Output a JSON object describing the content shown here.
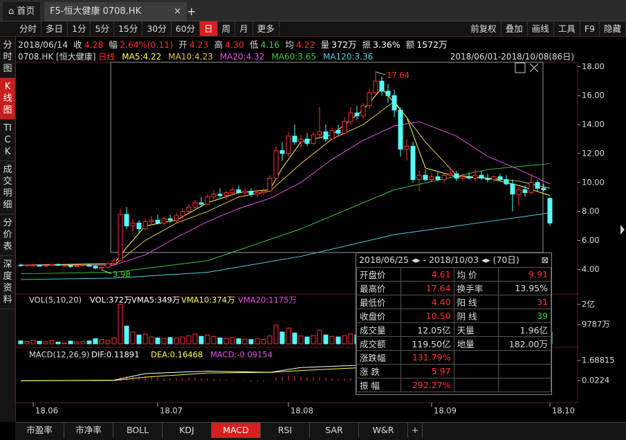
{
  "tabs": {
    "home": "首页",
    "stock": "F5-恒大健康 0708.HK",
    "close": "×",
    "add": "+"
  },
  "toolbar": {
    "left": [
      "分时",
      "多日",
      "1分",
      "5分",
      "15分",
      "30分",
      "60分",
      "日",
      "周",
      "月",
      "更多"
    ],
    "active": 7,
    "right": [
      "前复权",
      "叠加",
      "画线",
      "工具",
      "F9",
      "隐藏"
    ]
  },
  "sidebar": {
    "items": [
      "分时图",
      "K线图",
      "TICK",
      "成交明细",
      "分价表",
      "深度资料"
    ],
    "active": 1
  },
  "quote": {
    "date": "2018/06/14",
    "items": [
      {
        "label": "收",
        "value": "4.28",
        "color": "#ff3232"
      },
      {
        "label": "幅",
        "value": "2.64%(0.11)",
        "color": "#ff3232"
      },
      {
        "label": "开",
        "value": "4.23",
        "color": "#ff3232"
      },
      {
        "label": "高",
        "value": "4.30",
        "color": "#ff3232"
      },
      {
        "label": "低",
        "value": "4.16",
        "color": "#3cd23c"
      },
      {
        "label": "均",
        "value": "4.22",
        "color": "#ff3232"
      },
      {
        "label": "量",
        "value": "372万",
        "color": "#ffffff"
      },
      {
        "label": "振",
        "value": "3.36%",
        "color": "#ffffff"
      },
      {
        "label": "额",
        "value": "1572万",
        "color": "#ffffff"
      }
    ]
  },
  "chart_data": {
    "type": "candlestick",
    "symbol": "0708.HK [恒大健康]",
    "period": "日线",
    "range": "2018/06/01-2018/10/08(86日)",
    "up_color": "#ff3232",
    "down_color": "#54fcfc",
    "xlim": [
      0,
      85
    ],
    "xticks": [
      {
        "value": 2,
        "label": "18.06"
      },
      {
        "value": 22,
        "label": "18.07"
      },
      {
        "value": 43,
        "label": "18.08"
      },
      {
        "value": 66,
        "label": "18.09"
      },
      {
        "value": 85,
        "label": "18.10"
      }
    ],
    "ylim": [
      2.3,
      18.3
    ],
    "yticks": [
      {
        "value": 4,
        "label": "4.00"
      },
      {
        "value": 6,
        "label": "6.00"
      },
      {
        "value": 8,
        "label": "8.00"
      },
      {
        "value": 10,
        "label": "10.00"
      },
      {
        "value": 12,
        "label": "12.00"
      },
      {
        "value": 14,
        "label": "14.00"
      },
      {
        "value": 16,
        "label": "16.00"
      },
      {
        "value": 18,
        "label": "18.00"
      }
    ],
    "candles": [
      [
        4.3,
        4.4,
        4.2,
        4.25
      ],
      [
        4.25,
        4.35,
        4.2,
        4.3
      ],
      [
        4.3,
        4.4,
        4.25,
        4.3
      ],
      [
        4.3,
        4.35,
        4.2,
        4.22
      ],
      [
        4.22,
        4.3,
        4.15,
        4.28
      ],
      [
        4.28,
        4.4,
        4.25,
        4.35
      ],
      [
        4.35,
        4.4,
        4.25,
        4.28
      ],
      [
        4.23,
        4.3,
        4.16,
        4.28
      ],
      [
        4.28,
        4.3,
        4.1,
        4.2
      ],
      [
        4.2,
        4.3,
        4.15,
        4.25
      ],
      [
        4.25,
        4.35,
        4.2,
        4.3
      ],
      [
        4.3,
        4.4,
        4.2,
        4.22
      ],
      [
        4.22,
        4.3,
        4.0,
        4.1
      ],
      [
        4.1,
        4.2,
        3.98,
        4.15
      ],
      [
        4.15,
        4.5,
        4.1,
        4.4
      ],
      [
        4.4,
        4.7,
        4.3,
        4.6
      ],
      [
        4.6,
        8.2,
        4.6,
        7.8
      ],
      [
        7.8,
        8.3,
        6.8,
        7.0
      ],
      [
        7.0,
        7.5,
        6.6,
        7.2
      ],
      [
        7.2,
        7.4,
        6.5,
        6.8
      ],
      [
        6.8,
        7.5,
        6.7,
        7.3
      ],
      [
        7.3,
        7.7,
        7.0,
        7.4
      ],
      [
        7.4,
        7.8,
        7.1,
        7.2
      ],
      [
        7.2,
        7.6,
        7.0,
        7.5
      ],
      [
        7.5,
        7.8,
        7.2,
        7.4
      ],
      [
        7.4,
        7.9,
        7.2,
        7.7
      ],
      [
        7.7,
        8.2,
        7.5,
        8.0
      ],
      [
        8.0,
        8.5,
        7.8,
        8.3
      ],
      [
        8.3,
        8.8,
        8.1,
        8.6
      ],
      [
        8.6,
        9.0,
        8.3,
        8.5
      ],
      [
        8.5,
        9.2,
        8.4,
        9.0
      ],
      [
        9.0,
        9.5,
        8.8,
        9.2
      ],
      [
        9.2,
        9.6,
        8.9,
        9.1
      ],
      [
        9.1,
        9.4,
        8.8,
        9.3
      ],
      [
        9.3,
        9.7,
        9.1,
        9.5
      ],
      [
        9.5,
        9.8,
        9.2,
        9.3
      ],
      [
        9.3,
        9.6,
        9.1,
        9.4
      ],
      [
        9.4,
        9.6,
        9.0,
        9.2
      ],
      [
        9.2,
        9.5,
        9.0,
        9.3
      ],
      [
        9.3,
        9.6,
        9.1,
        9.4
      ],
      [
        9.4,
        10.5,
        9.3,
        10.3
      ],
      [
        10.3,
        12.5,
        10.2,
        12.2
      ],
      [
        12.2,
        12.8,
        11.5,
        12.0
      ],
      [
        12.0,
        13.5,
        11.8,
        13.2
      ],
      [
        13.2,
        14.0,
        12.6,
        12.8
      ],
      [
        12.8,
        13.3,
        12.4,
        13.0
      ],
      [
        13.0,
        13.4,
        12.5,
        12.7
      ],
      [
        12.7,
        13.5,
        12.6,
        13.3
      ],
      [
        13.3,
        15.2,
        13.0,
        13.5
      ],
      [
        13.5,
        14.0,
        12.8,
        13.0
      ],
      [
        13.0,
        13.8,
        12.9,
        13.6
      ],
      [
        13.6,
        14.0,
        13.2,
        13.4
      ],
      [
        13.4,
        14.5,
        13.3,
        14.2
      ],
      [
        14.2,
        15.2,
        14.0,
        14.8
      ],
      [
        14.8,
        15.3,
        14.3,
        14.6
      ],
      [
        14.6,
        15.5,
        14.4,
        15.3
      ],
      [
        15.3,
        16.5,
        15.1,
        16.2
      ],
      [
        16.2,
        17.64,
        16.0,
        17.0
      ],
      [
        17.0,
        17.3,
        16.0,
        16.3
      ],
      [
        16.3,
        16.8,
        15.5,
        16.0
      ],
      [
        16.0,
        16.4,
        14.5,
        15.0
      ],
      [
        15.0,
        15.2,
        11.8,
        12.3
      ],
      [
        12.3,
        13.0,
        11.5,
        12.5
      ],
      [
        12.5,
        12.8,
        10.0,
        10.2
      ],
      [
        10.2,
        10.8,
        9.4,
        10.5
      ],
      [
        10.5,
        10.9,
        10.1,
        10.2
      ],
      [
        10.2,
        10.6,
        10.0,
        10.4
      ],
      [
        10.4,
        10.7,
        10.1,
        10.2
      ],
      [
        10.2,
        10.6,
        10.0,
        10.5
      ],
      [
        10.5,
        11.0,
        10.3,
        10.6
      ],
      [
        10.6,
        10.8,
        10.1,
        10.3
      ],
      [
        10.3,
        10.6,
        10.1,
        10.4
      ],
      [
        10.4,
        10.7,
        10.2,
        10.3
      ],
      [
        10.3,
        10.9,
        10.1,
        10.5
      ],
      [
        10.5,
        10.8,
        10.2,
        10.3
      ],
      [
        10.3,
        10.6,
        10.0,
        10.2
      ],
      [
        10.2,
        10.5,
        10.0,
        10.4
      ],
      [
        10.4,
        10.6,
        10.1,
        10.2
      ],
      [
        10.2,
        10.5,
        9.8,
        9.9
      ],
      [
        9.9,
        10.2,
        8.0,
        9.2
      ],
      [
        9.2,
        9.8,
        8.4,
        9.5
      ],
      [
        9.5,
        9.8,
        9.0,
        9.3
      ],
      [
        9.3,
        10.6,
        9.2,
        10.0
      ],
      [
        10.0,
        10.2,
        9.4,
        9.6
      ],
      [
        9.6,
        9.9,
        9.4,
        9.5
      ],
      [
        8.9,
        9.0,
        7.0,
        7.2
      ]
    ],
    "ma": [
      {
        "name": "MA5:4.22",
        "color": "#ffff50",
        "x": [
          0,
          15,
          17,
          20,
          25,
          30,
          35,
          40,
          42,
          45,
          50,
          55,
          58,
          62,
          65,
          70,
          75,
          80,
          85
        ],
        "values": [
          4.3,
          4.4,
          5.5,
          7.0,
          7.4,
          8.6,
          9.3,
          9.5,
          11,
          12.8,
          13.3,
          15.0,
          16.5,
          14.5,
          11.0,
          10.4,
          10.3,
          9.8,
          9.1
        ]
      },
      {
        "name": "MA10:4.23",
        "color": "#e8c84a",
        "x": [
          0,
          15,
          20,
          25,
          30,
          35,
          40,
          45,
          50,
          55,
          60,
          65,
          70,
          75,
          80,
          85
        ],
        "values": [
          4.3,
          4.3,
          6.0,
          7.2,
          8.0,
          9.0,
          9.4,
          11.3,
          13.0,
          14.0,
          15.6,
          12.8,
          10.5,
          10.3,
          10.1,
          9.6
        ]
      },
      {
        "name": "MA20:4.32",
        "color": "#e650e6",
        "x": [
          0,
          15,
          20,
          25,
          30,
          35,
          40,
          45,
          50,
          55,
          60,
          64,
          70,
          75,
          80,
          85
        ],
        "values": [
          4.3,
          4.3,
          5.0,
          6.2,
          7.3,
          8.2,
          8.9,
          10.0,
          11.6,
          12.9,
          13.9,
          14.2,
          13.2,
          11.8,
          10.9,
          9.9
        ]
      },
      {
        "name": "MA60:3.65",
        "color": "#3cc83c",
        "x": [
          0,
          15,
          30,
          45,
          60,
          75,
          85
        ],
        "values": [
          3.7,
          3.8,
          4.6,
          6.8,
          9.5,
          10.9,
          11.3
        ]
      },
      {
        "name": "MA120:3.36",
        "color": "#50d2e6",
        "x": [
          0,
          15,
          30,
          45,
          60,
          75,
          85
        ],
        "values": [
          3.3,
          3.4,
          3.8,
          4.9,
          6.4,
          7.3,
          7.9
        ]
      }
    ],
    "annotations": [
      {
        "label": "17.64",
        "x": 57,
        "value": 17.64
      },
      {
        "label": "3.98",
        "x": 13,
        "value": 3.98
      }
    ],
    "volume": {
      "title": "VOL(5,10,20)",
      "legend": [
        {
          "text": "VOL:372万",
          "color": "#ffffff"
        },
        {
          "text": "VMA5:349万",
          "color": "#ffffff"
        },
        {
          "text": "VMA10:374万",
          "color": "#ffff50"
        },
        {
          "text": "VMA20:1175万",
          "color": "#e650e6"
        }
      ],
      "ylim": [
        0,
        24200
      ],
      "yticks": [
        {
          "value": 20000,
          "label": "2亿"
        },
        {
          "value": 9787,
          "label": "9787万"
        }
      ],
      "values": [
        1500,
        1200,
        1800,
        1300,
        1100,
        1600,
        900,
        372,
        1400,
        1000,
        1200,
        1500,
        2600,
        2200,
        1800,
        3000,
        20000,
        9000,
        6000,
        4500,
        5000,
        3500,
        3000,
        2800,
        3200,
        3000,
        3500,
        4000,
        5000,
        3800,
        4500,
        3800,
        3000,
        2800,
        3200,
        2600,
        2400,
        2200,
        2500,
        2300,
        4000,
        9500,
        6000,
        8000,
        5500,
        4000,
        3500,
        4200,
        7000,
        4500,
        3800,
        3500,
        4200,
        5000,
        4500,
        5000,
        6500,
        8500,
        6000,
        5000,
        5500,
        9000,
        7000,
        8000,
        5000,
        3500,
        3000,
        2800,
        3000,
        3500,
        2800,
        2500,
        2300,
        2600,
        2200,
        2000,
        2100,
        1900,
        2500,
        5000,
        3800,
        2600,
        4000,
        2800,
        2300,
        6000
      ]
    },
    "macd": {
      "title": "MACD(12,26,9)",
      "legend": [
        {
          "text": "DIF:0.11891",
          "color": "#ffffff"
        },
        {
          "text": "DEA:0.16468",
          "color": "#ffff50"
        },
        {
          "text": "MACD:-0.09154",
          "color": "#e650e6"
        }
      ],
      "ylim": [
        -1.7,
        2.32
      ],
      "yticks": [
        1.68815,
        0.0224
      ],
      "dif": {
        "color": "#ffffff",
        "x": [
          0,
          15,
          20,
          30,
          40,
          45,
          55,
          60,
          65,
          70,
          75,
          80,
          85
        ],
        "values": [
          0.0,
          0.05,
          0.6,
          0.8,
          0.7,
          1.1,
          1.3,
          1.7,
          1.1,
          0.5,
          0.2,
          0.05,
          -0.3
        ]
      },
      "dea": {
        "color": "#ffff50",
        "x": [
          0,
          15,
          20,
          30,
          40,
          45,
          55,
          60,
          65,
          70,
          75,
          80,
          85
        ],
        "values": [
          0.0,
          0.03,
          0.3,
          0.65,
          0.7,
          0.85,
          1.1,
          1.3,
          1.25,
          0.9,
          0.5,
          0.25,
          0.0
        ]
      },
      "values": [
        0.02,
        0.01,
        0.0,
        -0.01,
        -0.02,
        0.01,
        0.02,
        0.01,
        -0.01,
        -0.02,
        -0.01,
        0.0,
        -0.03,
        -0.02,
        0.01,
        0.03,
        0.3,
        0.4,
        0.42,
        0.38,
        0.36,
        0.3,
        0.25,
        0.22,
        0.2,
        0.2,
        0.22,
        0.25,
        0.26,
        0.22,
        0.2,
        0.18,
        0.12,
        0.08,
        0.05,
        0.02,
        -0.02,
        -0.05,
        -0.06,
        -0.05,
        0.05,
        0.3,
        0.35,
        0.42,
        0.4,
        0.35,
        0.3,
        0.28,
        0.3,
        0.25,
        0.2,
        0.18,
        0.2,
        0.25,
        0.28,
        0.32,
        0.4,
        0.5,
        0.45,
        0.4,
        0.35,
        0.1,
        -0.1,
        -0.3,
        -0.45,
        -0.55,
        -0.6,
        -0.62,
        -0.6,
        -0.55,
        -0.5,
        -0.45,
        -0.4,
        -0.35,
        -0.3,
        -0.28,
        -0.25,
        -0.22,
        -0.2,
        -0.25,
        -0.26,
        -0.22,
        -0.15,
        -0.18,
        -0.2,
        -0.35
      ]
    }
  },
  "stats": {
    "header": "2018/06/25 ◂▸ - 2018/10/03 ◂▸ (70日)",
    "close": "⊠",
    "rows": [
      [
        {
          "t": "开盘价"
        },
        {
          "t": "4.61",
          "c": "#ff3232"
        },
        {
          "t": "均 价"
        },
        {
          "t": "9.91",
          "c": "#ff3232"
        }
      ],
      [
        {
          "t": "最高价"
        },
        {
          "t": "17.64",
          "c": "#ff3232"
        },
        {
          "t": "换手率"
        },
        {
          "t": "13.95%"
        }
      ],
      [
        {
          "t": "最低价"
        },
        {
          "t": "4.40",
          "c": "#ff3232"
        },
        {
          "t": "阳 线"
        },
        {
          "t": "31",
          "c": "#ff3232"
        }
      ],
      [
        {
          "t": "收盘价"
        },
        {
          "t": "10.50",
          "c": "#ff3232"
        },
        {
          "t": "阴 线"
        },
        {
          "t": "39",
          "c": "#3cd23c"
        }
      ],
      [
        {
          "t": "成交量"
        },
        {
          "t": "12.05亿"
        },
        {
          "t": "天量"
        },
        {
          "t": "1.96亿"
        }
      ],
      [
        {
          "t": "成交额"
        },
        {
          "t": "119.50亿"
        },
        {
          "t": "地量"
        },
        {
          "t": "182.00万"
        }
      ],
      [
        {
          "t": "涨跌幅"
        },
        {
          "t": "131.79%",
          "c": "#ff3232"
        }
      ],
      [
        {
          "t": "涨 跌"
        },
        {
          "t": "5.97",
          "c": "#ff3232"
        }
      ],
      [
        {
          "t": "振 幅"
        },
        {
          "t": "292.27%",
          "c": "#ff3232"
        }
      ]
    ]
  },
  "bottom_tabs": {
    "items": [
      "市盈率",
      "市净率",
      "BOLL",
      "KDJ",
      "MACD",
      "RSI",
      "SAR",
      "W&R"
    ],
    "active": 4,
    "add": "+"
  }
}
